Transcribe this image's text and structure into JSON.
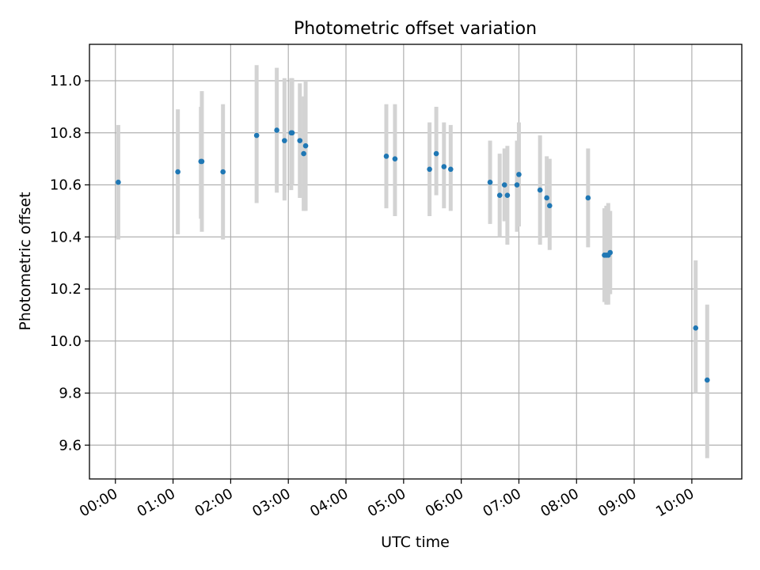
{
  "chart_data": {
    "type": "scatter",
    "title": "Photometric offset variation",
    "xlabel": "UTC time",
    "ylabel": "Photometric offset",
    "x_unit": "hours (UTC)",
    "xlim": [
      "23:33",
      "10:52"
    ],
    "ylim": [
      9.47,
      11.14
    ],
    "x_ticks": [
      "00:00",
      "01:00",
      "02:00",
      "03:00",
      "04:00",
      "05:00",
      "06:00",
      "07:00",
      "08:00",
      "09:00",
      "10:00"
    ],
    "y_ticks": [
      9.6,
      9.8,
      10.0,
      10.2,
      10.4,
      10.6,
      10.8,
      11.0
    ],
    "grid": true,
    "colors": {
      "marker": "#1f77b4",
      "errorbar": "#d3d3d3"
    },
    "series": [
      {
        "points": [
          {
            "x": "00:03",
            "y": 10.61,
            "ylo": 10.39,
            "yhi": 10.83
          },
          {
            "x": "01:05",
            "y": 10.65,
            "ylo": 10.41,
            "yhi": 10.89
          },
          {
            "x": "01:29",
            "y": 10.69,
            "ylo": 10.47,
            "yhi": 10.9
          },
          {
            "x": "01:30",
            "y": 10.69,
            "ylo": 10.42,
            "yhi": 10.96
          },
          {
            "x": "01:52",
            "y": 10.65,
            "ylo": 10.39,
            "yhi": 10.91
          },
          {
            "x": "02:27",
            "y": 10.79,
            "ylo": 10.53,
            "yhi": 11.06
          },
          {
            "x": "02:48",
            "y": 10.81,
            "ylo": 10.57,
            "yhi": 11.05
          },
          {
            "x": "02:56",
            "y": 10.77,
            "ylo": 10.54,
            "yhi": 11.01
          },
          {
            "x": "03:03",
            "y": 10.8,
            "ylo": 10.58,
            "yhi": 11.01
          },
          {
            "x": "03:04",
            "y": 10.8,
            "ylo": 10.6,
            "yhi": 11.01
          },
          {
            "x": "03:12",
            "y": 10.77,
            "ylo": 10.55,
            "yhi": 10.99
          },
          {
            "x": "03:16",
            "y": 10.72,
            "ylo": 10.5,
            "yhi": 10.94
          },
          {
            "x": "03:18",
            "y": 10.75,
            "ylo": 10.5,
            "yhi": 11.0
          },
          {
            "x": "04:42",
            "y": 10.71,
            "ylo": 10.51,
            "yhi": 10.91
          },
          {
            "x": "04:51",
            "y": 10.7,
            "ylo": 10.48,
            "yhi": 10.91
          },
          {
            "x": "05:27",
            "y": 10.66,
            "ylo": 10.48,
            "yhi": 10.84
          },
          {
            "x": "05:34",
            "y": 10.72,
            "ylo": 10.56,
            "yhi": 10.9
          },
          {
            "x": "05:42",
            "y": 10.67,
            "ylo": 10.51,
            "yhi": 10.84
          },
          {
            "x": "05:49",
            "y": 10.66,
            "ylo": 10.5,
            "yhi": 10.83
          },
          {
            "x": "06:30",
            "y": 10.61,
            "ylo": 10.45,
            "yhi": 10.77
          },
          {
            "x": "06:40",
            "y": 10.56,
            "ylo": 10.4,
            "yhi": 10.72
          },
          {
            "x": "06:45",
            "y": 10.6,
            "ylo": 10.46,
            "yhi": 10.74
          },
          {
            "x": "06:48",
            "y": 10.56,
            "ylo": 10.37,
            "yhi": 10.75
          },
          {
            "x": "06:58",
            "y": 10.6,
            "ylo": 10.42,
            "yhi": 10.77
          },
          {
            "x": "07:00",
            "y": 10.64,
            "ylo": 10.44,
            "yhi": 10.84
          },
          {
            "x": "07:22",
            "y": 10.58,
            "ylo": 10.37,
            "yhi": 10.79
          },
          {
            "x": "07:29",
            "y": 10.55,
            "ylo": 10.4,
            "yhi": 10.71
          },
          {
            "x": "07:32",
            "y": 10.52,
            "ylo": 10.35,
            "yhi": 10.7
          },
          {
            "x": "08:12",
            "y": 10.55,
            "ylo": 10.36,
            "yhi": 10.74
          },
          {
            "x": "08:29",
            "y": 10.33,
            "ylo": 10.15,
            "yhi": 10.51
          },
          {
            "x": "08:31",
            "y": 10.33,
            "ylo": 10.14,
            "yhi": 10.52
          },
          {
            "x": "08:33",
            "y": 10.33,
            "ylo": 10.14,
            "yhi": 10.53
          },
          {
            "x": "08:35",
            "y": 10.34,
            "ylo": 10.18,
            "yhi": 10.5
          },
          {
            "x": "10:04",
            "y": 10.05,
            "ylo": 9.8,
            "yhi": 10.31
          },
          {
            "x": "10:16",
            "y": 9.85,
            "ylo": 9.55,
            "yhi": 10.14
          }
        ]
      }
    ]
  }
}
